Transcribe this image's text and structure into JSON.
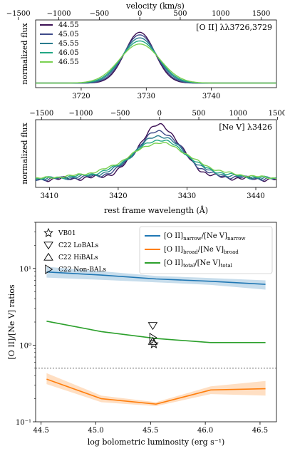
{
  "figure": {
    "top_axis_label": "velocity (km/s)",
    "velocity_ticks": [
      -1500,
      -1000,
      -500,
      0,
      500,
      1000,
      1500
    ],
    "panel1": {
      "ylabel": "normalized flux",
      "annotation": "[O II] λλ3726,3729",
      "x_ticks": [
        3720,
        3730,
        3740
      ],
      "x_range": [
        3713,
        3750
      ],
      "center": 3729
    },
    "panel2": {
      "ylabel": "normalized flux",
      "annotation": "[Ne V] λ3426",
      "x_ticks": [
        3410,
        3420,
        3430,
        3440
      ],
      "x_range": [
        3408,
        3443
      ],
      "center": 3426,
      "xlabel": "rest frame wavelength (Å)"
    },
    "panel3": {
      "ylabel": "[O II]/[Ne V] ratios",
      "xlabel": "log bolometric luminosity (erg s⁻¹)",
      "x_ticks": [
        44.5,
        45.0,
        45.5,
        46.0,
        46.5
      ],
      "x_range": [
        44.45,
        46.65
      ],
      "y_range_log": [
        0.1,
        40
      ],
      "y_ticks": [
        {
          "value": 0.1,
          "label": "10⁻¹"
        },
        {
          "value": 1,
          "label": "10⁰"
        },
        {
          "value": 10,
          "label": "10¹"
        }
      ],
      "reference_line": 0.5
    }
  },
  "chart_data": [
    {
      "type": "line",
      "panel": "[O II] λλ3726,3729",
      "x_unit": "Å",
      "series": [
        {
          "name": "44.55",
          "color": "#3b0f53",
          "peak": 1.0,
          "sigma": 2.3
        },
        {
          "name": "45.05",
          "color": "#3e4a89",
          "peak": 0.95,
          "sigma": 2.45
        },
        {
          "name": "45.55",
          "color": "#2a7b8e",
          "peak": 0.89,
          "sigma": 2.65
        },
        {
          "name": "46.05",
          "color": "#22a784",
          "peak": 0.83,
          "sigma": 2.85
        },
        {
          "name": "46.55",
          "color": "#7ad151",
          "peak": 0.77,
          "sigma": 3.1
        }
      ]
    },
    {
      "type": "line",
      "panel": "[Ne V] λ3426",
      "x_unit": "Å",
      "series": [
        {
          "name": "44.55",
          "color": "#3b0f53",
          "peak": 1.0,
          "sigma": 3.0,
          "wing": 0.08
        },
        {
          "name": "45.05",
          "color": "#3e4a89",
          "peak": 0.85,
          "sigma": 3.2,
          "wing": 0.11
        },
        {
          "name": "45.55",
          "color": "#2a7b8e",
          "peak": 0.72,
          "sigma": 3.4,
          "wing": 0.15
        },
        {
          "name": "46.05",
          "color": "#22a784",
          "peak": 0.6,
          "sigma": 3.6,
          "wing": 0.19
        },
        {
          "name": "46.55",
          "color": "#7ad151",
          "peak": 0.5,
          "sigma": 3.9,
          "wing": 0.23
        }
      ]
    },
    {
      "type": "line",
      "panel": "ratios",
      "y_scale": "log",
      "x": [
        44.55,
        45.05,
        45.55,
        46.05,
        46.55
      ],
      "series": [
        {
          "name": "[O II]narrow/[Ne V]narrow",
          "label_main": "[O II]",
          "sub1": "narrow",
          "mid": "/[Ne V]",
          "sub2": "narrow",
          "color": "#1f77b4",
          "values": [
            9.0,
            8.2,
            7.3,
            6.8,
            6.2
          ],
          "lower": [
            7.6,
            7.1,
            6.6,
            6.1,
            5.3
          ],
          "upper": [
            10.5,
            9.2,
            8.0,
            7.5,
            7.0
          ]
        },
        {
          "name": "[O II]broad/[Ne V]broad",
          "label_main": "[O II]",
          "sub1": "broad",
          "mid": "/[Ne V]",
          "sub2": "broad",
          "color": "#ff7f0e",
          "values": [
            0.36,
            0.2,
            0.17,
            0.26,
            0.27
          ],
          "lower": [
            0.31,
            0.18,
            0.16,
            0.23,
            0.22
          ],
          "upper": [
            0.43,
            0.22,
            0.18,
            0.29,
            0.34
          ]
        },
        {
          "name": "[O II]total/[Ne V]total",
          "label_main": "[O II]",
          "sub1": "total",
          "mid": "/[Ne V]",
          "sub2": "total",
          "color": "#2ca02c",
          "values": [
            2.05,
            1.5,
            1.22,
            1.08,
            1.08
          ]
        }
      ],
      "markers": [
        {
          "name": "VB01",
          "symbol": "star",
          "x": 45.53,
          "y": 1.03
        },
        {
          "name": "C22 LoBALs",
          "symbol": "triangle-down",
          "x": 45.52,
          "y": 1.8
        },
        {
          "name": "C22 HiBALs",
          "symbol": "triangle-up",
          "x": 45.52,
          "y": 1.12
        },
        {
          "name": "C22 Non-BALs",
          "symbol": "triangle-right",
          "x": 45.52,
          "y": 1.25
        }
      ]
    }
  ]
}
